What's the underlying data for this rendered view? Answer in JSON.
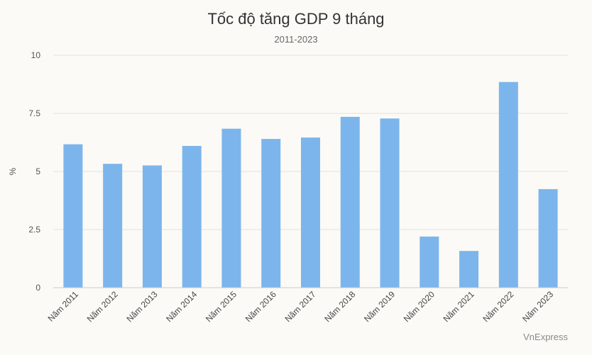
{
  "source_label": "VnExpress",
  "chart_data": {
    "type": "bar",
    "title": "Tốc độ tăng GDP 9 tháng",
    "subtitle": "2011-2023",
    "xlabel": "",
    "ylabel": "%",
    "ylim": [
      0,
      10
    ],
    "yticks": [
      0,
      2.5,
      5,
      7.5,
      10
    ],
    "ytick_labels": [
      "0",
      "2.5",
      "5",
      "7.5",
      "10"
    ],
    "grid": true,
    "legend": "none",
    "bar_color": "#7cb5ec",
    "categories": [
      "Năm 2011",
      "Năm 2012",
      "Năm 2013",
      "Năm 2014",
      "Năm 2015",
      "Năm 2016",
      "Năm 2017",
      "Năm 2018",
      "Năm 2019",
      "Năm 2020",
      "Năm 2021",
      "Năm 2022",
      "Năm 2023"
    ],
    "values": [
      6.17,
      5.33,
      5.26,
      6.1,
      6.84,
      6.4,
      6.46,
      7.35,
      7.28,
      2.2,
      1.58,
      8.85,
      4.24
    ]
  }
}
